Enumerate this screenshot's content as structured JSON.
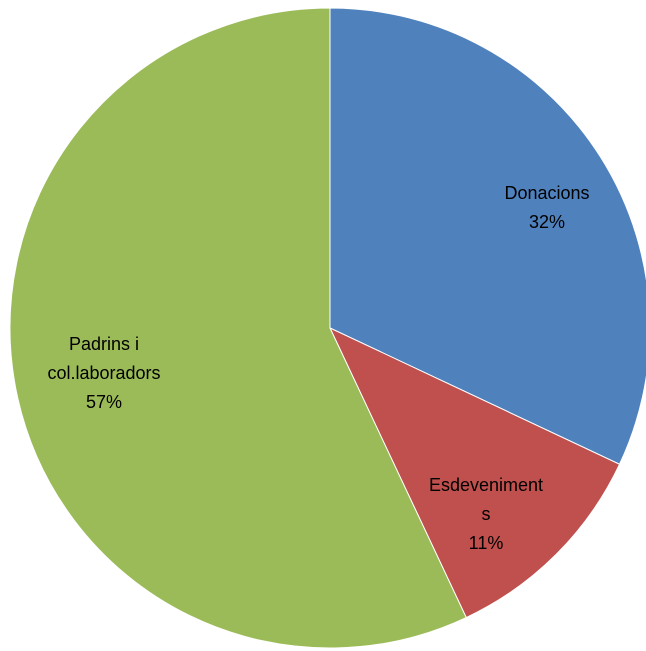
{
  "chart_data": {
    "type": "pie",
    "slices": [
      {
        "label_lines": [
          "Donacions"
        ],
        "percent_text": "32%",
        "value": 32,
        "color": "#4F81BD"
      },
      {
        "label_lines": [
          "Esdeveniment",
          "s"
        ],
        "percent_text": "11%",
        "value": 11,
        "color": "#C0504D"
      },
      {
        "label_lines": [
          "Padrins i",
          "col.laboradors"
        ],
        "percent_text": "57%",
        "value": 57,
        "color": "#9BBB59"
      }
    ],
    "start_angle_deg": 0,
    "direction": "clockwise",
    "legend": "none"
  }
}
